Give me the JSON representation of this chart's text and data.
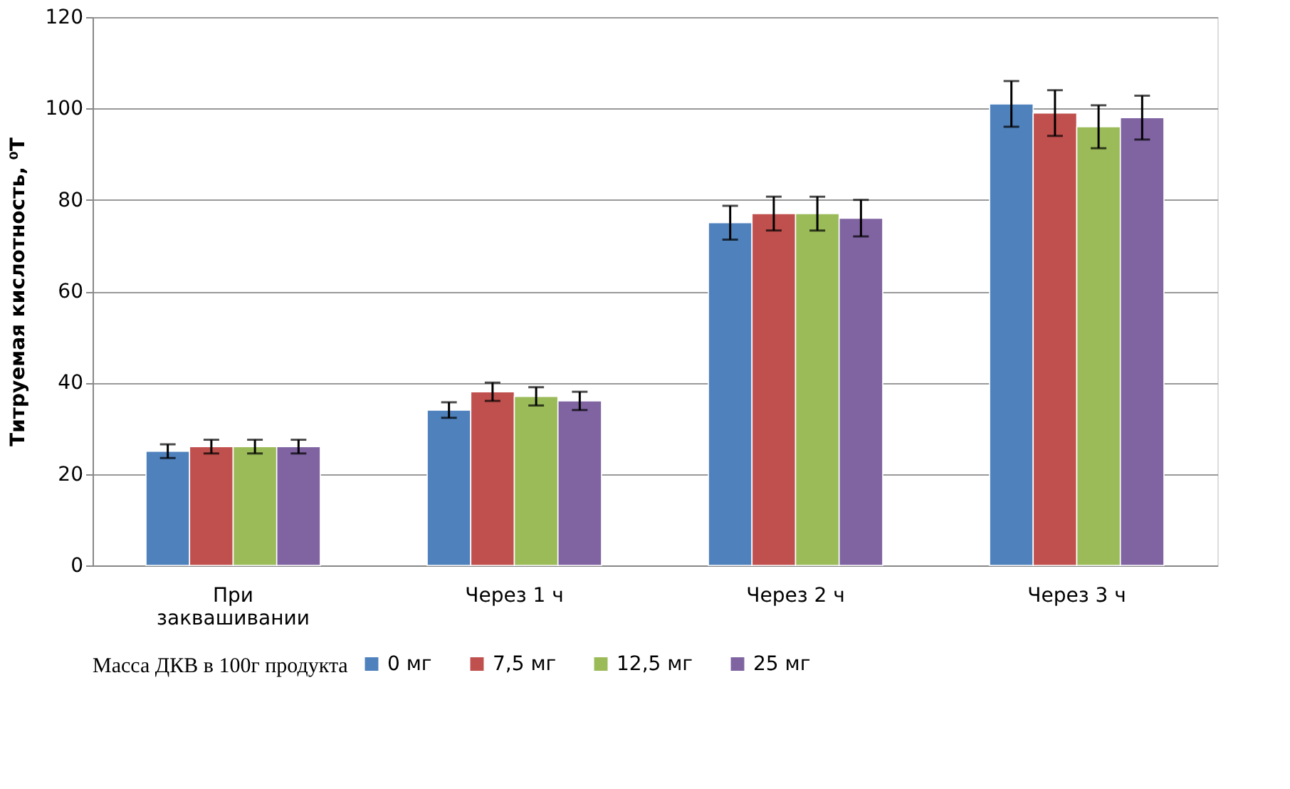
{
  "chart_data": {
    "type": "bar",
    "ylabel": "Титруемая  кислотность, ⁰Т",
    "legend_title": "Масса ДКВ в 100г  продукта",
    "categories": [
      "При заквашивании",
      "Через 1 ч",
      "Через 2 ч",
      "Через 3 ч"
    ],
    "series": [
      {
        "name": "0 мг",
        "color": "#4f81bd",
        "values": [
          25,
          34,
          75,
          101
        ],
        "errors": [
          1.5,
          1.7,
          3.7,
          5
        ]
      },
      {
        "name": "7,5 мг",
        "color": "#c0504d",
        "values": [
          26,
          38,
          77,
          99
        ],
        "errors": [
          1.5,
          2,
          3.7,
          5
        ]
      },
      {
        "name": "12,5 мг",
        "color": "#9bbb59",
        "values": [
          26,
          37,
          77,
          96
        ],
        "errors": [
          1.5,
          2,
          3.7,
          4.7
        ]
      },
      {
        "name": "25 мг",
        "color": "#8064a2",
        "values": [
          26,
          36,
          76,
          98
        ],
        "errors": [
          1.5,
          2,
          4,
          4.8
        ]
      }
    ],
    "ylim": [
      0,
      120
    ],
    "yticks": [
      0,
      20,
      40,
      60,
      80,
      100,
      120
    ],
    "grid": "y",
    "legend": "bottom"
  }
}
